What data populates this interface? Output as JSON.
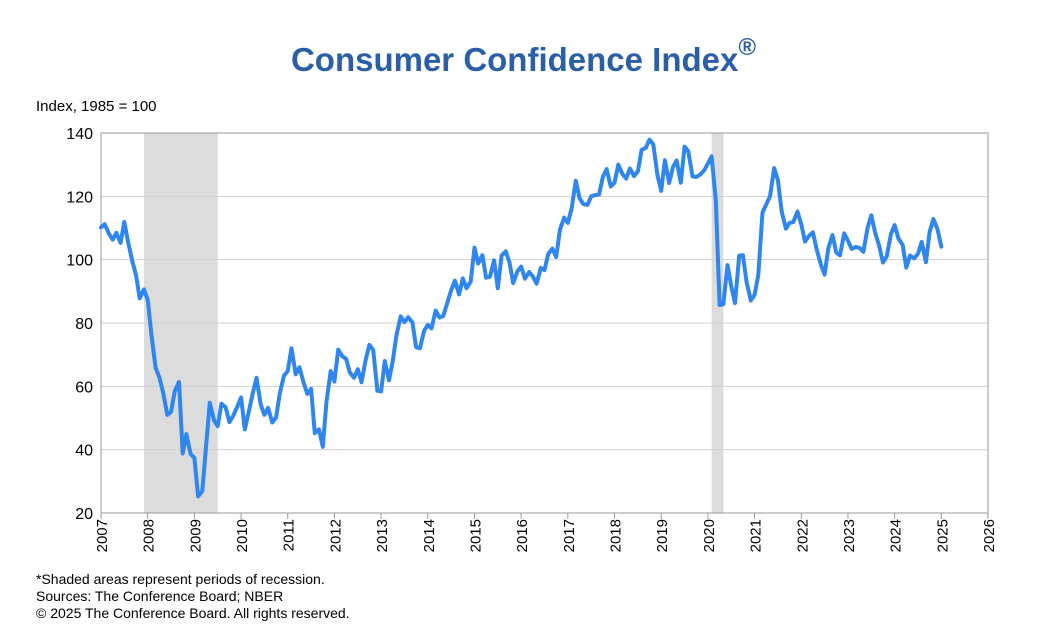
{
  "chart_data": {
    "type": "line",
    "title": "Consumer Confidence Index",
    "title_mark": "®",
    "ylabel": "Index, 1985 = 100",
    "xlabel": "",
    "ylim": [
      20,
      140
    ],
    "y_ticks": [
      20,
      40,
      60,
      80,
      100,
      120,
      140
    ],
    "xlim": [
      2007,
      2026
    ],
    "x_ticks": [
      "2007",
      "2008",
      "2009",
      "2010",
      "2011",
      "2012",
      "2013",
      "2014",
      "2015",
      "2016",
      "2017",
      "2018",
      "2019",
      "2020",
      "2021",
      "2022",
      "2023",
      "2024",
      "2025",
      "2026"
    ],
    "grid": true,
    "line_color": "#2e86ee",
    "recession_color": "#dcdcdc",
    "recessions": [
      [
        2007.92,
        2009.5
      ],
      [
        2020.08,
        2020.33
      ]
    ],
    "series": [
      {
        "x": [
          2007.0,
          2007.08,
          2007.17,
          2007.25,
          2007.33,
          2007.42,
          2007.5,
          2007.58,
          2007.67,
          2007.75,
          2007.83,
          2007.92,
          2008.0,
          2008.08,
          2008.17,
          2008.25,
          2008.33,
          2008.42,
          2008.5,
          2008.58,
          2008.67,
          2008.75,
          2008.83,
          2008.92,
          2009.0,
          2009.08,
          2009.17,
          2009.25,
          2009.33,
          2009.42,
          2009.5,
          2009.58,
          2009.67,
          2009.75,
          2009.83,
          2009.92,
          2010.0,
          2010.08,
          2010.17,
          2010.25,
          2010.33,
          2010.42,
          2010.5,
          2010.58,
          2010.67,
          2010.75,
          2010.83,
          2010.92,
          2011.0,
          2011.08,
          2011.17,
          2011.25,
          2011.33,
          2011.42,
          2011.5,
          2011.58,
          2011.67,
          2011.75,
          2011.83,
          2011.92,
          2012.0,
          2012.08,
          2012.17,
          2012.25,
          2012.33,
          2012.42,
          2012.5,
          2012.58,
          2012.67,
          2012.75,
          2012.83,
          2012.92,
          2013.0,
          2013.08,
          2013.17,
          2013.25,
          2013.33,
          2013.42,
          2013.5,
          2013.58,
          2013.67,
          2013.75,
          2013.83,
          2013.92,
          2014.0,
          2014.08,
          2014.17,
          2014.25,
          2014.33,
          2014.42,
          2014.5,
          2014.58,
          2014.67,
          2014.75,
          2014.83,
          2014.92,
          2015.0,
          2015.08,
          2015.17,
          2015.25,
          2015.33,
          2015.42,
          2015.5,
          2015.58,
          2015.67,
          2015.75,
          2015.83,
          2015.92,
          2016.0,
          2016.08,
          2016.17,
          2016.25,
          2016.33,
          2016.42,
          2016.5,
          2016.58,
          2016.67,
          2016.75,
          2016.83,
          2016.92,
          2017.0,
          2017.08,
          2017.17,
          2017.25,
          2017.33,
          2017.42,
          2017.5,
          2017.58,
          2017.67,
          2017.75,
          2017.83,
          2017.92,
          2018.0,
          2018.08,
          2018.17,
          2018.25,
          2018.33,
          2018.42,
          2018.5,
          2018.58,
          2018.67,
          2018.75,
          2018.83,
          2018.92,
          2019.0,
          2019.08,
          2019.17,
          2019.25,
          2019.33,
          2019.42,
          2019.5,
          2019.58,
          2019.67,
          2019.75,
          2019.83,
          2019.92,
          2020.0,
          2020.08,
          2020.17,
          2020.25,
          2020.33,
          2020.42,
          2020.5,
          2020.58,
          2020.67,
          2020.75,
          2020.83,
          2020.92,
          2021.0,
          2021.08,
          2021.17,
          2021.25,
          2021.33,
          2021.42,
          2021.5,
          2021.58,
          2021.67,
          2021.75,
          2021.83,
          2021.92,
          2022.0,
          2022.08,
          2022.17,
          2022.25,
          2022.33,
          2022.42,
          2022.5,
          2022.58,
          2022.67,
          2022.75,
          2022.83,
          2022.92,
          2023.0,
          2023.08,
          2023.17,
          2023.25,
          2023.33,
          2023.42,
          2023.5,
          2023.58,
          2023.67,
          2023.75,
          2023.83,
          2023.92,
          2024.0,
          2024.08,
          2024.17,
          2024.25,
          2024.33,
          2024.42,
          2024.5,
          2024.58,
          2024.67,
          2024.75,
          2024.83,
          2024.92,
          2025.0
        ],
        "y": [
          110.2,
          111.2,
          108.2,
          106.3,
          108.5,
          105.3,
          111.9,
          105.6,
          99.5,
          95.2,
          87.8,
          90.6,
          87.3,
          76.4,
          65.9,
          62.8,
          58.1,
          51.0,
          51.9,
          58.5,
          61.4,
          38.8,
          44.9,
          38.6,
          37.4,
          25.3,
          26.9,
          40.8,
          54.8,
          49.3,
          47.4,
          54.5,
          53.4,
          48.7,
          50.6,
          53.6,
          56.5,
          46.4,
          52.3,
          57.7,
          62.7,
          54.3,
          51.0,
          53.2,
          48.6,
          50.2,
          57.8,
          63.4,
          64.8,
          72.0,
          63.8,
          66.0,
          61.7,
          57.6,
          59.2,
          45.2,
          46.4,
          40.9,
          55.2,
          64.8,
          61.5,
          71.6,
          69.5,
          68.7,
          64.4,
          62.7,
          65.4,
          61.3,
          68.4,
          73.1,
          71.5,
          58.6,
          58.4,
          68.0,
          61.9,
          68.1,
          76.2,
          82.1,
          80.3,
          81.8,
          80.2,
          72.4,
          72.0,
          77.5,
          79.4,
          78.3,
          83.9,
          81.7,
          82.2,
          86.4,
          90.3,
          93.4,
          89.0,
          94.1,
          91.0,
          93.1,
          103.8,
          98.8,
          101.4,
          94.3,
          94.6,
          99.8,
          91.0,
          101.3,
          102.6,
          99.1,
          92.6,
          96.3,
          97.8,
          94.0,
          96.1,
          94.7,
          92.4,
          97.4,
          96.7,
          101.8,
          103.5,
          100.8,
          109.4,
          113.3,
          111.6,
          116.1,
          124.9,
          119.4,
          117.6,
          117.3,
          120.0,
          120.4,
          120.6,
          126.2,
          128.6,
          123.1,
          124.3,
          130.0,
          127.0,
          125.6,
          128.8,
          126.4,
          127.9,
          134.7,
          135.3,
          137.9,
          136.4,
          126.6,
          121.7,
          131.4,
          124.2,
          129.2,
          131.3,
          124.3,
          135.7,
          134.2,
          126.3,
          126.1,
          126.8,
          128.2,
          130.4,
          132.6,
          118.8,
          85.7,
          85.9,
          98.3,
          91.7,
          86.3,
          101.3,
          101.4,
          92.9,
          87.1,
          88.9,
          95.2,
          114.9,
          117.5,
          120.0,
          128.9,
          125.1,
          115.2,
          109.8,
          111.6,
          111.9,
          115.2,
          111.1,
          105.7,
          107.6,
          108.6,
          103.2,
          98.4,
          95.3,
          103.6,
          107.8,
          102.2,
          101.4,
          108.3,
          106.0,
          103.4,
          104.0,
          103.7,
          102.5,
          110.1,
          114.0,
          108.7,
          104.3,
          99.1,
          101.0,
          108.0,
          110.9,
          106.7,
          104.7,
          97.5,
          101.3,
          100.4,
          101.9,
          105.6,
          99.2,
          108.7,
          112.8,
          109.5,
          104.1
        ]
      }
    ],
    "notes": [
      "*Shaded areas represent periods of recession.",
      "Sources: The Conference Board;  NBER",
      "© 2025 The Conference Board. All rights reserved."
    ]
  }
}
